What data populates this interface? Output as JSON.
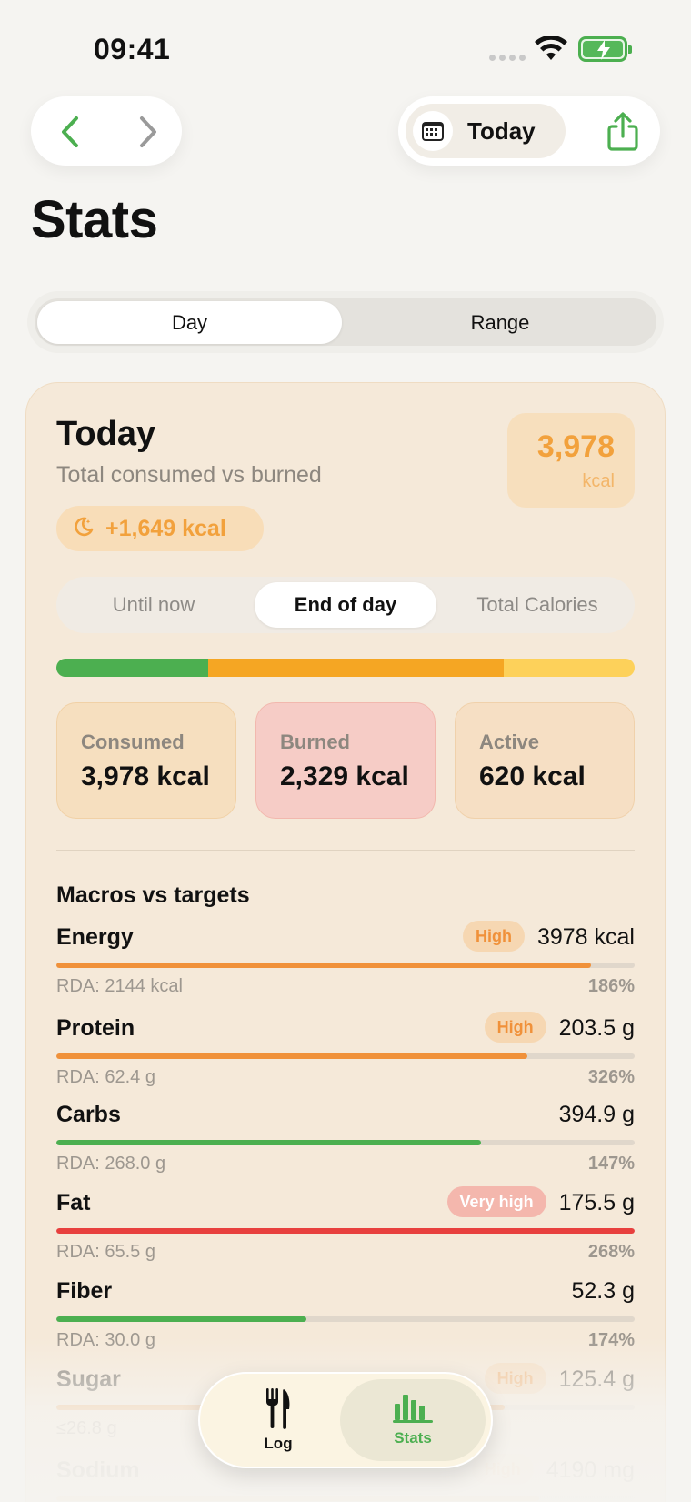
{
  "status_bar": {
    "time": "09:41"
  },
  "nav": {
    "back_icon": "chevron-left-icon",
    "forward_icon": "chevron-right-icon",
    "date_button_label": "Today",
    "share_icon": "share-icon"
  },
  "page": {
    "title": "Stats"
  },
  "view_toggle": {
    "options": [
      "Day",
      "Range"
    ],
    "selected": "Day"
  },
  "summary": {
    "title": "Today",
    "subtitle": "Total consumed vs burned",
    "total_value": "3,978",
    "total_unit": "kcal",
    "balance": "+1,649 kcal",
    "modes": [
      "Until now",
      "End of day",
      "Total Calories"
    ],
    "selected_mode": "End of day",
    "bar_segments": [
      {
        "color": "#4caf50",
        "fraction": 0.263
      },
      {
        "color": "#f5a623",
        "fraction": 0.511
      },
      {
        "color": "#fdd15a",
        "fraction": 0.226
      }
    ],
    "tiles": [
      {
        "label": "Consumed",
        "value": "3,978 kcal"
      },
      {
        "label": "Burned",
        "value": "2,329 kcal"
      },
      {
        "label": "Active",
        "value": "620 kcal"
      }
    ]
  },
  "macros": {
    "title": "Macros vs targets",
    "rows": [
      {
        "name": "Energy",
        "value": "3978 kcal",
        "badge": "High",
        "rda": "RDA: 2144 kcal",
        "pct": "186%",
        "fill": 0.925,
        "color": "#f0913a"
      },
      {
        "name": "Protein",
        "value": "203.5 g",
        "badge": "High",
        "rda": "RDA: 62.4 g",
        "pct": "326%",
        "fill": 0.815,
        "color": "#f0913a"
      },
      {
        "name": "Carbs",
        "value": "394.9 g",
        "badge": "",
        "rda": "RDA: 268.0 g",
        "pct": "147%",
        "fill": 0.735,
        "color": "#4caf50"
      },
      {
        "name": "Fat",
        "value": "175.5 g",
        "badge": "Very high",
        "rda": "RDA: 65.5 g",
        "pct": "268%",
        "fill": 1.0,
        "color": "#e8403e"
      },
      {
        "name": "Fiber",
        "value": "52.3 g",
        "badge": "",
        "rda": "RDA: 30.0 g",
        "pct": "174%",
        "fill": 0.433,
        "color": "#4caf50"
      },
      {
        "name": "Sugar",
        "value": "125.4 g",
        "badge": "High",
        "rda": "≤26.8 g",
        "pct": "",
        "fill": 0.775,
        "color": "#f0913a"
      },
      {
        "name": "Sodium",
        "value": "4190 mg",
        "badge": "High",
        "rda": "",
        "pct": "",
        "fill": 0.835,
        "color": "#f0913a"
      }
    ]
  },
  "tabbar": {
    "tabs": [
      {
        "label": "Log",
        "icon": "fork-knife-icon"
      },
      {
        "label": "Stats",
        "icon": "bar-chart-icon"
      }
    ],
    "selected": "Stats"
  }
}
